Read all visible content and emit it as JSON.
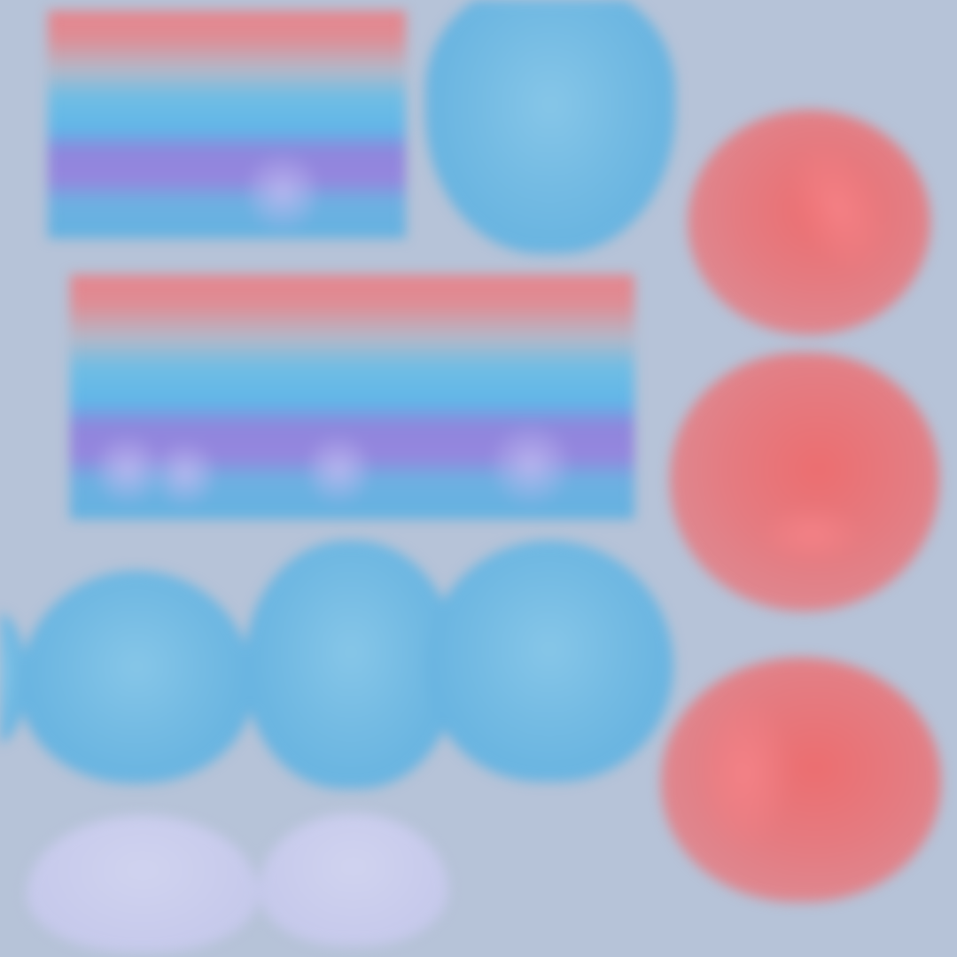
{
  "screen": {
    "background_color": "#b6c3d8"
  },
  "tiles": {
    "striped_color_stops": [
      "#e5848c",
      "#b3b8c9",
      "#61b6e8",
      "#9586de",
      "#64b2e0"
    ],
    "blue": {
      "color": "#6ab5e1",
      "icon": "blue-blob-icon",
      "count": 5
    },
    "lavender": {
      "color": "#c8cbec",
      "icon": "lavender-blob-icon",
      "count": 2
    },
    "red": {
      "color": "#e47c82",
      "icon": "red-blob-icon",
      "count": 3
    }
  }
}
